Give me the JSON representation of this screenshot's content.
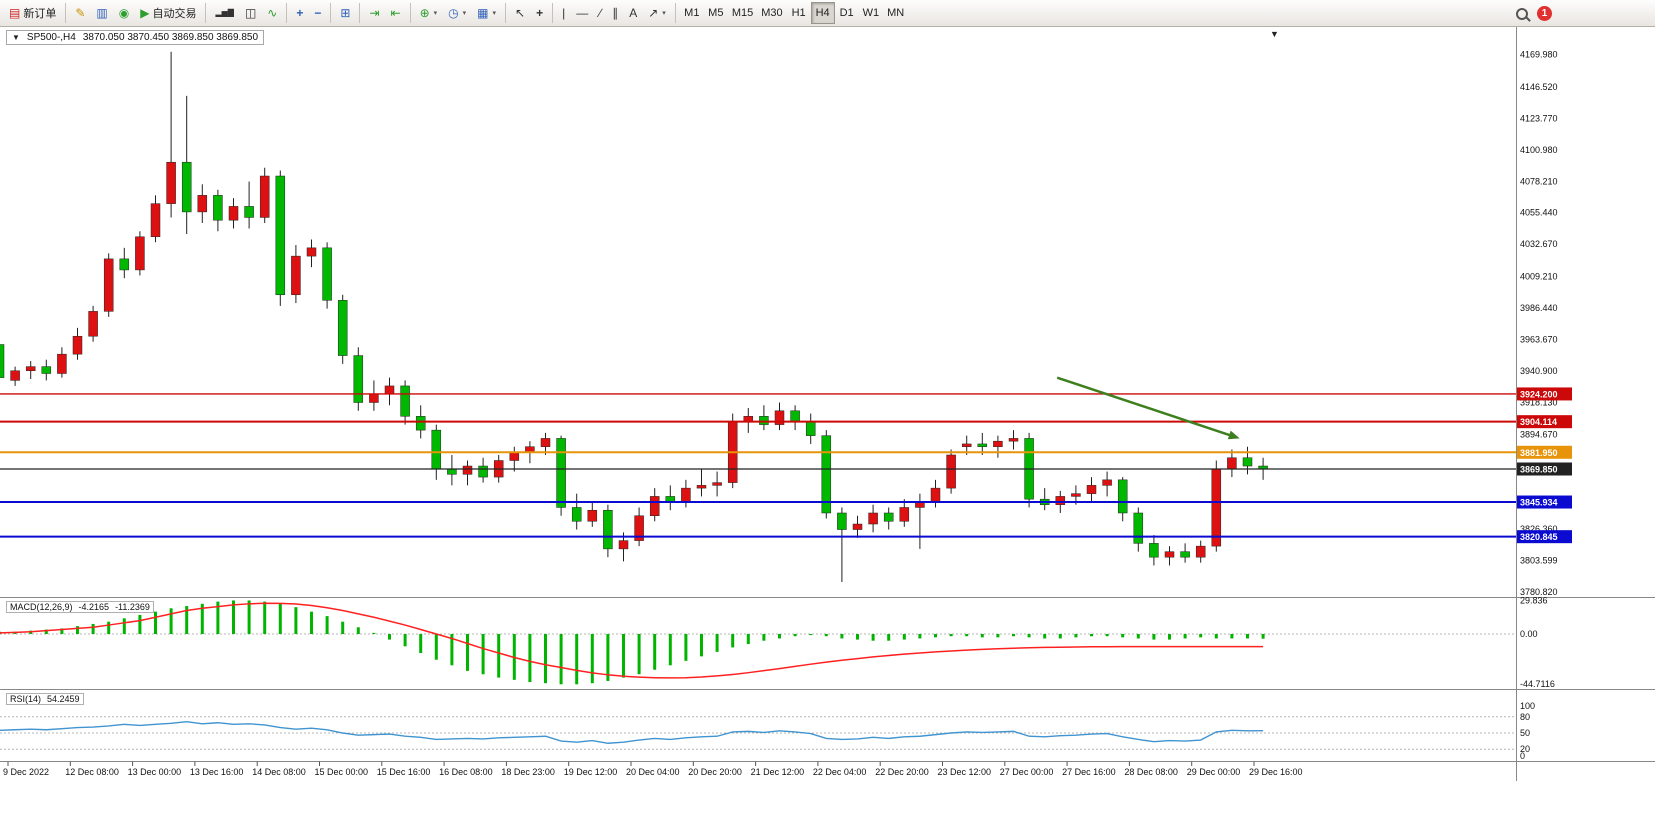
{
  "toolbar": {
    "new_order": {
      "label": "新订单"
    },
    "autotrading": {
      "label": "自动交易"
    },
    "timeframes": {
      "items": [
        "M1",
        "M5",
        "M15",
        "M30",
        "H1",
        "H4",
        "D1",
        "W1",
        "MN"
      ],
      "active": "H4"
    },
    "notification_badge": "1",
    "icons": {
      "new_order": "▤",
      "editor": "✎",
      "terminal": "▥",
      "community": "◉",
      "play": "▶",
      "bars": "▂▅▇",
      "candles": "◫",
      "line": "∿",
      "zoom_in": "+",
      "zoom_out": "−",
      "tile": "⊞",
      "autoscroll": "⇥",
      "shift": "⇤",
      "indicators": "⊕",
      "periods": "◷",
      "templates": "▦",
      "cursor": "↖",
      "crosshair": "+",
      "vline": "|",
      "hline": "—",
      "trend": "∕",
      "channel": "∥",
      "text": "A",
      "arrows": "↗",
      "dropdown": "▾"
    }
  },
  "chart_header": {
    "dropdown_glyph": "▼",
    "symbol": "SP500-,H4",
    "ohlc": "3870.050 3870.450 3869.850 3869.850",
    "shift_marker": "▼"
  },
  "chart_data": {
    "type": "candlestick",
    "symbol": "SP500-",
    "timeframe": "H4",
    "title": "SP500-,H4 3870.050 3870.450 3869.850 3869.850",
    "current_price": 3869.85,
    "ohlc_current": {
      "open": 3870.05,
      "high": 3870.45,
      "low": 3869.85,
      "close": 3869.85
    },
    "bull_color": "#dd1111",
    "bear_color": "#00b800",
    "price_axis_labels": [
      "4169.980",
      "4146.520",
      "4123.770",
      "4100.980",
      "4078.210",
      "4055.440",
      "4032.670",
      "4009.210",
      "3986.440",
      "3963.670",
      "3940.900",
      "3918.130",
      "3894.670",
      "3826.360",
      "3803.599",
      "3780.820"
    ],
    "hlines": [
      {
        "price": 3924.2,
        "label": "3924.200",
        "color": "#cc0808",
        "width": 1.4
      },
      {
        "price": 3904.114,
        "label": "3904.114",
        "color": "#cc0808",
        "width": 2
      },
      {
        "price": 3881.95,
        "label": "3881.950",
        "color": "#e8940a",
        "width": 2
      },
      {
        "price": 3869.85,
        "label": "3869.850",
        "color": "#222222",
        "width": 1.2
      },
      {
        "price": 3845.934,
        "label": "3845.934",
        "color": "#0a0ad0",
        "width": 2
      },
      {
        "price": 3820.845,
        "label": "3820.845",
        "color": "#0a0ad0",
        "width": 2
      }
    ],
    "candles": [
      [
        3960,
        3964,
        3928,
        3936
      ],
      [
        3934,
        3944,
        3930,
        3941
      ],
      [
        3941,
        3948,
        3935,
        3944
      ],
      [
        3944,
        3949,
        3934,
        3939
      ],
      [
        3939,
        3958,
        3936,
        3953
      ],
      [
        3953,
        3972,
        3949,
        3966
      ],
      [
        3966,
        3988,
        3962,
        3984
      ],
      [
        3984,
        4026,
        3980,
        4022
      ],
      [
        4022,
        4030,
        4008,
        4014
      ],
      [
        4014,
        4042,
        4010,
        4038
      ],
      [
        4038,
        4068,
        4034,
        4062
      ],
      [
        4062,
        4172,
        4052,
        4092
      ],
      [
        4092,
        4140,
        4040,
        4056
      ],
      [
        4056,
        4076,
        4048,
        4068
      ],
      [
        4068,
        4072,
        4042,
        4050
      ],
      [
        4050,
        4066,
        4044,
        4060
      ],
      [
        4060,
        4078,
        4044,
        4052
      ],
      [
        4052,
        4088,
        4048,
        4082
      ],
      [
        4082,
        4086,
        3988,
        3996
      ],
      [
        3996,
        4032,
        3990,
        4024
      ],
      [
        4024,
        4036,
        4016,
        4030
      ],
      [
        4030,
        4034,
        3986,
        3992
      ],
      [
        3992,
        3996,
        3946,
        3952
      ],
      [
        3952,
        3958,
        3912,
        3918
      ],
      [
        3918,
        3934,
        3912,
        3924
      ],
      [
        3924,
        3936,
        3916,
        3930
      ],
      [
        3930,
        3934,
        3902,
        3908
      ],
      [
        3908,
        3916,
        3892,
        3898
      ],
      [
        3898,
        3902,
        3862,
        3870
      ],
      [
        3870,
        3880,
        3858,
        3866
      ],
      [
        3866,
        3876,
        3858,
        3872
      ],
      [
        3872,
        3878,
        3860,
        3864
      ],
      [
        3864,
        3880,
        3860,
        3876
      ],
      [
        3876,
        3886,
        3868,
        3882
      ],
      [
        3882,
        3890,
        3874,
        3886
      ],
      [
        3886,
        3896,
        3880,
        3892
      ],
      [
        3892,
        3894,
        3836,
        3842
      ],
      [
        3842,
        3852,
        3826,
        3832
      ],
      [
        3832,
        3846,
        3828,
        3840
      ],
      [
        3840,
        3844,
        3806,
        3812
      ],
      [
        3812,
        3824,
        3803,
        3818
      ],
      [
        3818,
        3842,
        3814,
        3836
      ],
      [
        3836,
        3856,
        3832,
        3850
      ],
      [
        3850,
        3858,
        3840,
        3846
      ],
      [
        3846,
        3862,
        3842,
        3856
      ],
      [
        3856,
        3870,
        3850,
        3858
      ],
      [
        3858,
        3868,
        3850,
        3860
      ],
      [
        3860,
        3910,
        3856,
        3904
      ],
      [
        3904,
        3914,
        3896,
        3908
      ],
      [
        3908,
        3916,
        3898,
        3902
      ],
      [
        3902,
        3918,
        3898,
        3912
      ],
      [
        3912,
        3916,
        3898,
        3904
      ],
      [
        3904,
        3910,
        3888,
        3894
      ],
      [
        3894,
        3898,
        3834,
        3838
      ],
      [
        3838,
        3842,
        3788,
        3826
      ],
      [
        3826,
        3836,
        3820,
        3830
      ],
      [
        3830,
        3844,
        3824,
        3838
      ],
      [
        3838,
        3842,
        3826,
        3832
      ],
      [
        3832,
        3848,
        3828,
        3842
      ],
      [
        3842,
        3852,
        3812,
        3846
      ],
      [
        3846,
        3862,
        3842,
        3856
      ],
      [
        3856,
        3884,
        3852,
        3880
      ],
      [
        3886,
        3894,
        3880,
        3888
      ],
      [
        3888,
        3896,
        3880,
        3886
      ],
      [
        3886,
        3894,
        3878,
        3890
      ],
      [
        3890,
        3898,
        3884,
        3892
      ],
      [
        3892,
        3896,
        3842,
        3848
      ],
      [
        3848,
        3856,
        3840,
        3844
      ],
      [
        3844,
        3854,
        3838,
        3850
      ],
      [
        3850,
        3858,
        3844,
        3852
      ],
      [
        3852,
        3864,
        3846,
        3858
      ],
      [
        3858,
        3868,
        3850,
        3862
      ],
      [
        3862,
        3864,
        3832,
        3838
      ],
      [
        3838,
        3842,
        3810,
        3816
      ],
      [
        3816,
        3822,
        3800,
        3806
      ],
      [
        3806,
        3814,
        3800,
        3810
      ],
      [
        3810,
        3816,
        3802,
        3806
      ],
      [
        3806,
        3818,
        3802,
        3814
      ],
      [
        3814,
        3876,
        3810,
        3870
      ],
      [
        3870,
        3884,
        3864,
        3878
      ],
      [
        3878,
        3886,
        3866,
        3872
      ],
      [
        3872,
        3878,
        3862,
        3869.85
      ]
    ],
    "time_labels": [
      "9 Dec 2022",
      "12 Dec 08:00",
      "13 Dec 00:00",
      "13 Dec 16:00",
      "14 Dec 08:00",
      "15 Dec 00:00",
      "15 Dec 16:00",
      "16 Dec 08:00",
      "18 Dec 23:00",
      "19 Dec 12:00",
      "20 Dec 04:00",
      "20 Dec 20:00",
      "21 Dec 12:00",
      "22 Dec 04:00",
      "22 Dec 20:00",
      "23 Dec 12:00",
      "27 Dec 00:00",
      "27 Dec 16:00",
      "28 Dec 08:00",
      "29 Dec 00:00",
      "29 Dec 16:00"
    ],
    "annotation_arrow": {
      "bar1": 67.8,
      "price1": 3936,
      "bar2": 79.5,
      "price2": 3892,
      "color": "#3e7f1f",
      "width": 2.5
    },
    "macd": {
      "name": "MACD(12,26,9)",
      "value": "-4.2165",
      "signal_value": "-11.2369",
      "axis_labels": [
        "29.836",
        "0.00",
        "-44.7116"
      ],
      "histogram_color": "#00b400",
      "signal_color": "#ff2020",
      "histogram": [
        2,
        2,
        3,
        4,
        5,
        7,
        9,
        11,
        14,
        17,
        20,
        23,
        25,
        27,
        29,
        30,
        30,
        29,
        27,
        24,
        20,
        16,
        11,
        6,
        1,
        -5,
        -11,
        -17,
        -23,
        -28,
        -33,
        -36,
        -39,
        -41,
        -43,
        -44,
        -45,
        -45,
        -44,
        -42,
        -39,
        -36,
        -32,
        -28,
        -24,
        -20,
        -16,
        -12,
        -9,
        -6,
        -4,
        -2,
        -1,
        -2,
        -4,
        -5,
        -6,
        -6,
        -5,
        -4,
        -3,
        -2,
        -2,
        -3,
        -3,
        -2,
        -3,
        -4,
        -4,
        -3,
        -2,
        -2,
        -3,
        -4,
        -5,
        -5,
        -4,
        -3,
        -4,
        -4,
        -4,
        -4.2
      ],
      "signal": [
        1,
        1.5,
        2,
        3,
        4,
        5,
        6,
        8,
        10,
        12,
        15,
        18,
        21,
        23,
        24.5,
        26,
        27,
        27.5,
        27.4,
        26.8,
        25.5,
        23.5,
        21,
        18,
        15,
        11.5,
        8,
        4,
        0,
        -4,
        -8.5,
        -13,
        -17,
        -21,
        -24.5,
        -27.5,
        -30,
        -32.5,
        -34.8,
        -36.5,
        -37.8,
        -38.6,
        -39.1,
        -39.3,
        -39.1,
        -38.5,
        -37.5,
        -36.2,
        -34.6,
        -32.8,
        -31,
        -29,
        -27,
        -25.2,
        -23.5,
        -22,
        -20.5,
        -19.2,
        -18,
        -17,
        -16,
        -15.2,
        -14.4,
        -13.8,
        -13.2,
        -12.7,
        -12.3,
        -12,
        -11.8,
        -11.6,
        -11.45,
        -11.35,
        -11.3,
        -11.25,
        -11.25,
        -11.25,
        -11.3,
        -11.3,
        -11.3,
        -11.28,
        -11.26,
        -11.24
      ]
    },
    "rsi": {
      "name": "RSI(14)",
      "value": "54.2459",
      "axis_labels": [
        "100",
        "80",
        "50",
        "20",
        "0"
      ],
      "levels": [
        80,
        50,
        20
      ],
      "color": "#4094d0",
      "values": [
        55,
        56,
        57,
        56,
        58,
        60,
        61,
        63,
        66,
        64,
        66,
        68,
        71,
        67,
        69,
        66,
        67,
        65,
        60,
        57,
        59,
        56,
        50,
        46,
        47,
        48,
        44,
        42,
        38,
        39,
        40,
        39,
        41,
        42,
        43,
        44,
        35,
        33,
        36,
        31,
        33,
        37,
        40,
        38,
        41,
        43,
        44,
        52,
        53,
        51,
        54,
        52,
        49,
        40,
        38,
        39,
        42,
        40,
        43,
        44,
        47,
        50,
        52,
        51,
        52,
        53,
        44,
        43,
        45,
        46,
        48,
        49,
        43,
        38,
        34,
        36,
        35,
        37,
        52,
        55,
        54,
        54.25
      ]
    }
  }
}
